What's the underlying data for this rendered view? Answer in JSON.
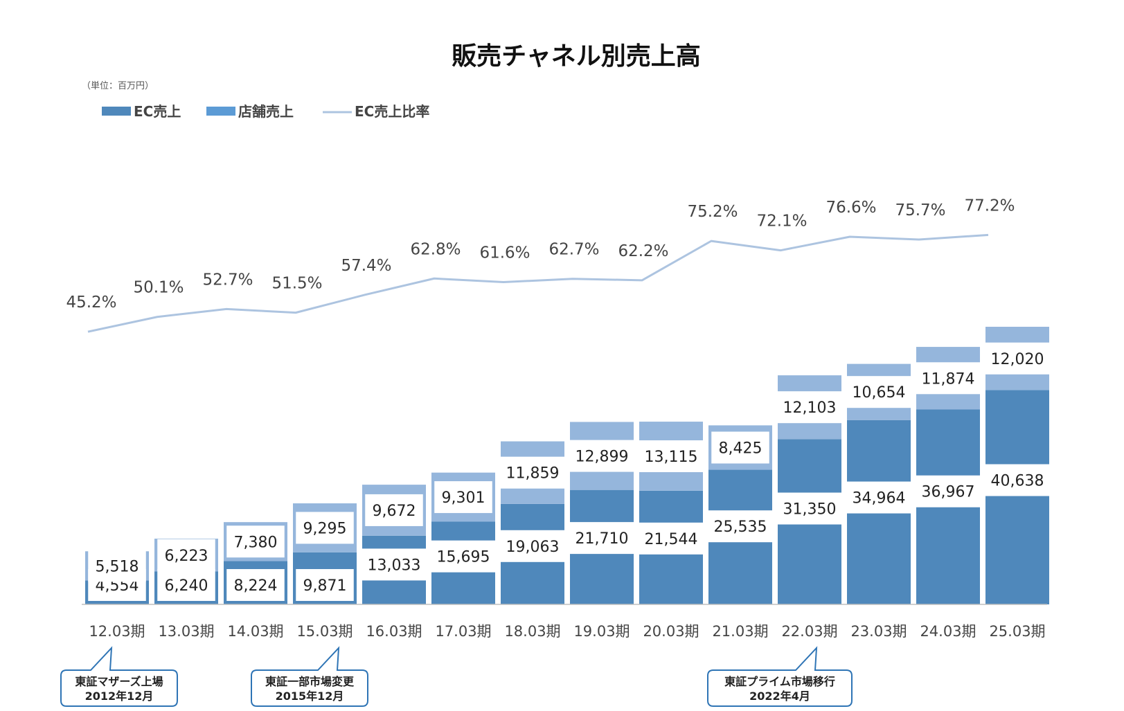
{
  "chart_data": {
    "type": "bar",
    "stacked": true,
    "title": "販売チャネル別売上高",
    "unit_note": "（単位：百万円）",
    "categories": [
      "12.03期",
      "13.03期",
      "14.03期",
      "15.03期",
      "16.03期",
      "17.03期",
      "18.03期",
      "19.03期",
      "20.03期",
      "21.03期",
      "22.03期",
      "23.03期",
      "24.03期",
      "25.03期"
    ],
    "series": [
      {
        "name": "EC売上",
        "color": "#4f88bb",
        "values": [
          4554,
          6240,
          8224,
          9871,
          13033,
          15695,
          19063,
          21710,
          21544,
          25535,
          31350,
          34964,
          36967,
          40638
        ]
      },
      {
        "name": "店舗売上",
        "color": "#95b6dc",
        "values": [
          5518,
          6223,
          7380,
          9295,
          9672,
          9301,
          11859,
          12899,
          13115,
          8425,
          12103,
          10654,
          11874,
          12020
        ]
      }
    ],
    "line_series": {
      "name": "EC売上比率",
      "color": "#adc4e0",
      "values": [
        45.2,
        50.1,
        52.7,
        51.5,
        57.4,
        62.8,
        61.6,
        62.7,
        62.2,
        75.2,
        72.1,
        76.6,
        75.7,
        77.2
      ],
      "labels": [
        "45.2%",
        "50.1%",
        "52.7%",
        "51.5%",
        "57.4%",
        "62.8%",
        "61.6%",
        "62.7%",
        "62.2%",
        "75.2%",
        "72.1%",
        "76.6%",
        "75.7%",
        "77.2%"
      ]
    },
    "bar_labels": {
      "ec": [
        "4,554",
        "6,240",
        "8,224",
        "9,871",
        "13,033",
        "15,695",
        "19,063",
        "21,710",
        "21,544",
        "25,535",
        "31,350",
        "34,964",
        "36,967",
        "40,638"
      ],
      "store": [
        "5,518",
        "6,223",
        "7,380",
        "9,295",
        "9,672",
        "9,301",
        "11,859",
        "12,899",
        "13,115",
        "8,425",
        "12,103",
        "10,654",
        "11,874",
        "12,020"
      ]
    },
    "legend": [
      "EC売上",
      "店舗売上",
      "EC売上比率"
    ],
    "legend_position": "top-left",
    "grid": false,
    "annotations": [
      {
        "category": "12.03期",
        "lines": [
          "東証マザーズ上場",
          "2012年12月"
        ]
      },
      {
        "category": "15.03期",
        "lines": [
          "東証一部市場変更",
          "2015年12月"
        ]
      },
      {
        "category": "22.03期",
        "lines": [
          "東証プライム市場移行",
          "2022年4月"
        ]
      }
    ]
  }
}
